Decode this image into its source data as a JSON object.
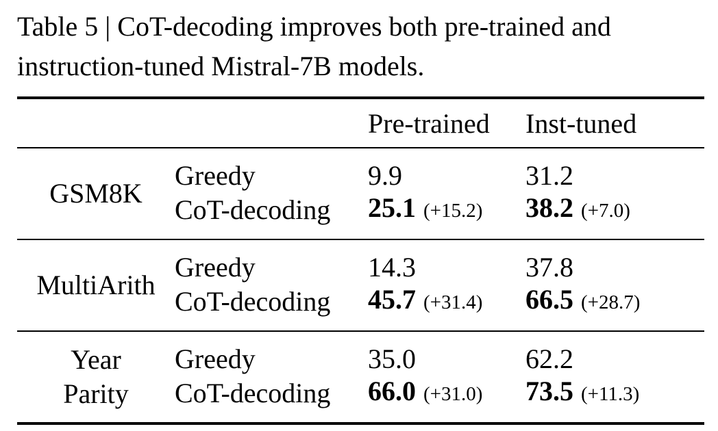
{
  "colors": {
    "background": "#ffffff",
    "text": "#000000",
    "rule": "#000000"
  },
  "caption": {
    "full": "Table 5 | CoT-decoding improves both pre-trained and instruction-tuned Mistral-7B models.",
    "line1": "Table 5 | CoT-decoding improves both pre-trained",
    "line2": "and instruction-tuned Mistral-7B models."
  },
  "table": {
    "columns": {
      "task": "",
      "method": "",
      "pretrained": "Pre-trained",
      "insttuned": "Inst-tuned"
    },
    "sections": [
      {
        "task_line1": "GSM8K",
        "task_line2": "",
        "rows": [
          {
            "method": "Greedy",
            "pre": "9.9",
            "pre_delta": "",
            "inst": "31.2",
            "inst_delta": ""
          },
          {
            "method": "CoT-decoding",
            "pre": "25.1",
            "pre_delta": "(+15.2)",
            "inst": "38.2",
            "inst_delta": "(+7.0)"
          }
        ]
      },
      {
        "task_line1": "MultiArith",
        "task_line2": "",
        "rows": [
          {
            "method": "Greedy",
            "pre": "14.3",
            "pre_delta": "",
            "inst": "37.8",
            "inst_delta": ""
          },
          {
            "method": "CoT-decoding",
            "pre": "45.7",
            "pre_delta": "(+31.4)",
            "inst": "66.5",
            "inst_delta": "(+28.7)"
          }
        ]
      },
      {
        "task_line1": "Year",
        "task_line2": "Parity",
        "rows": [
          {
            "method": "Greedy",
            "pre": "35.0",
            "pre_delta": "",
            "inst": "62.2",
            "inst_delta": ""
          },
          {
            "method": "CoT-decoding",
            "pre": "66.0",
            "pre_delta": "(+31.0)",
            "inst": "73.5",
            "inst_delta": "(+11.3)"
          }
        ]
      }
    ]
  }
}
